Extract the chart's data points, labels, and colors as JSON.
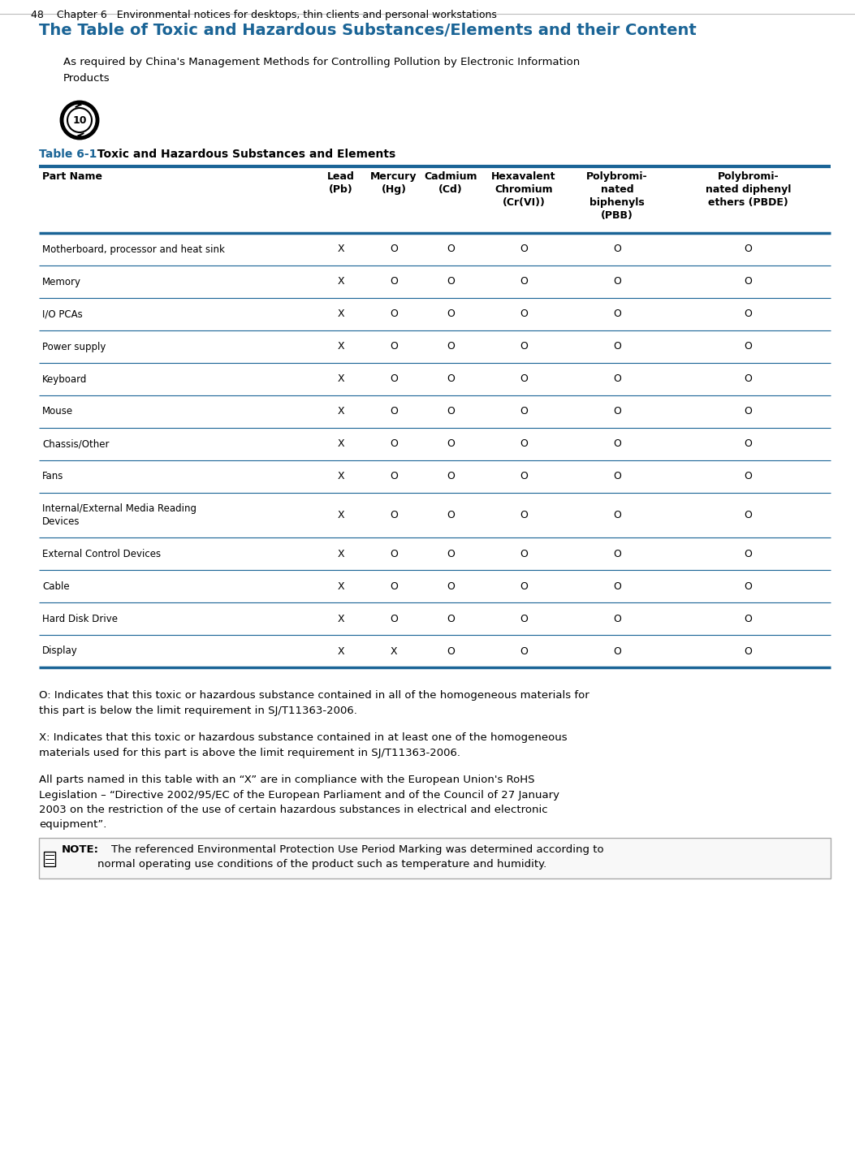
{
  "title": "The Table of Toxic and Hazardous Substances/Elements and their Content",
  "subtitle1": "As required by China's Management Methods for Controlling Pollution by Electronic Information",
  "subtitle2": "Products",
  "table_label": "Table 6-1",
  "table_label_suffix": "  Toxic and Hazardous Substances and Elements",
  "col_headers": [
    "Part Name",
    "Lead\n(Pb)",
    "Mercury\n(Hg)",
    "Cadmium\n(Cd)",
    "Hexavalent\nChromium\n(Cr(VI))",
    "Polybromi-\nnated\nbiphenyls\n(PBB)",
    "Polybromi-\nnated diphenyl\nethers (PBDE)"
  ],
  "rows": [
    [
      "Motherboard, processor and heat sink",
      "X",
      "O",
      "O",
      "O",
      "O",
      "O"
    ],
    [
      "Memory",
      "X",
      "O",
      "O",
      "O",
      "O",
      "O"
    ],
    [
      "I/O PCAs",
      "X",
      "O",
      "O",
      "O",
      "O",
      "O"
    ],
    [
      "Power supply",
      "X",
      "O",
      "O",
      "O",
      "O",
      "O"
    ],
    [
      "Keyboard",
      "X",
      "O",
      "O",
      "O",
      "O",
      "O"
    ],
    [
      "Mouse",
      "X",
      "O",
      "O",
      "O",
      "O",
      "O"
    ],
    [
      "Chassis/Other",
      "X",
      "O",
      "O",
      "O",
      "O",
      "O"
    ],
    [
      "Fans",
      "X",
      "O",
      "O",
      "O",
      "O",
      "O"
    ],
    [
      "Internal/External Media Reading\nDevices",
      "X",
      "O",
      "O",
      "O",
      "O",
      "O"
    ],
    [
      "External Control Devices",
      "X",
      "O",
      "O",
      "O",
      "O",
      "O"
    ],
    [
      "Cable",
      "X",
      "O",
      "O",
      "O",
      "O",
      "O"
    ],
    [
      "Hard Disk Drive",
      "X",
      "O",
      "O",
      "O",
      "O",
      "O"
    ],
    [
      "Display",
      "X",
      "X",
      "O",
      "O",
      "O",
      "O"
    ]
  ],
  "note_o": "O: Indicates that this toxic or hazardous substance contained in all of the homogeneous materials for\nthis part is below the limit requirement in SJ/T11363-2006.",
  "note_x": "X: Indicates that this toxic or hazardous substance contained in at least one of the homogeneous\nmaterials used for this part is above the limit requirement in SJ/T11363-2006.",
  "note_all": "All parts named in this table with an “X” are in compliance with the European Union's RoHS\nLegislation – “Directive 2002/95/EC of the European Parliament and of the Council of 27 January\n2003 on the restriction of the use of certain hazardous substances in electrical and electronic\nequipment”.",
  "note_env_bold": "NOTE:",
  "note_env_rest": "    The referenced Environmental Protection Use Period Marking was determined according to\nnormal operating use conditions of the product such as temperature and humidity.",
  "footer": "48    Chapter 6   Environmental notices for desktops, thin clients and personal workstations",
  "blue": "#1a6496",
  "black": "#000000",
  "gray_line": "#cccccc",
  "bg": "#ffffff",
  "fig_w": 10.53,
  "fig_h": 14.46,
  "dpi": 100
}
